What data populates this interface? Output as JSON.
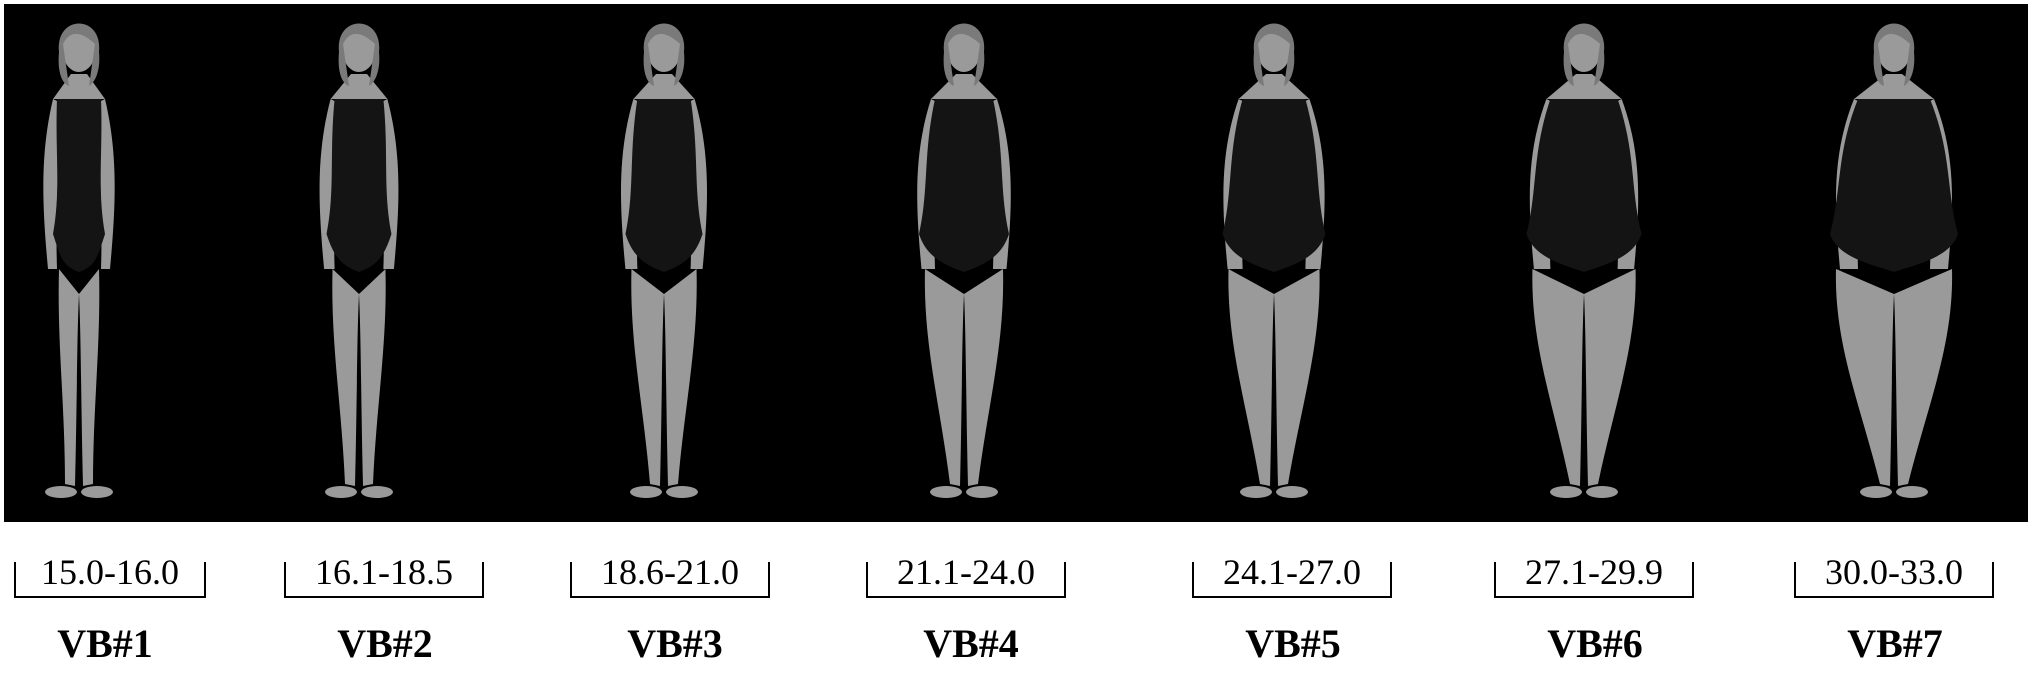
{
  "figures": [
    {
      "bmi_range": "15.0-16.0",
      "label": "VB#1",
      "build": 0.0
    },
    {
      "bmi_range": "16.1-18.5",
      "label": "VB#2",
      "build": 0.17
    },
    {
      "bmi_range": "18.6-21.0",
      "label": "VB#3",
      "build": 0.33
    },
    {
      "bmi_range": "21.1-24.0",
      "label": "VB#4",
      "build": 0.5
    },
    {
      "bmi_range": "24.1-27.0",
      "label": "VB#5",
      "build": 0.67
    },
    {
      "bmi_range": "27.1-29.9",
      "label": "VB#6",
      "build": 0.83
    },
    {
      "bmi_range": "30.0-33.0",
      "label": "VB#7",
      "build": 1.0
    }
  ],
  "colors": {
    "background": "#000000",
    "skin": "#9a9a9a",
    "swimsuit": "#141414",
    "hair": "#7a7a7a"
  }
}
